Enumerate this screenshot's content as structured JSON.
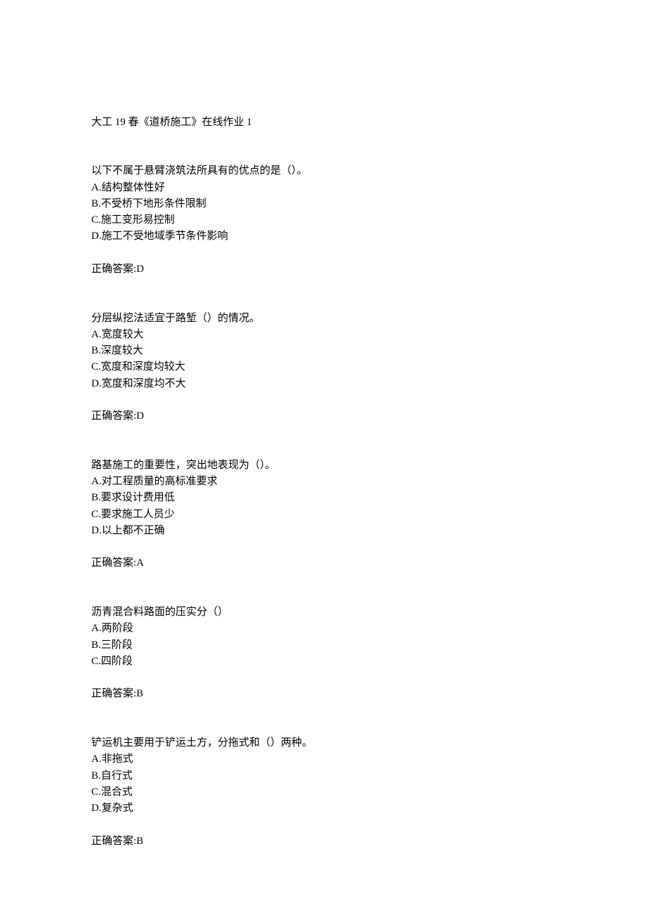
{
  "header": "大工 19 春《道桥施工》在线作业 1",
  "questions": [
    {
      "stem": "以下不属于悬臂浇筑法所具有的优点的是（）。",
      "options": [
        "A.结构整体性好",
        "B.不受桥下地形条件限制",
        "C.施工变形易控制",
        "D.施工不受地域季节条件影响"
      ],
      "answer": "正确答案:D"
    },
    {
      "stem": "分层纵挖法适宜于路堑（）的情况。",
      "options": [
        "A.宽度较大",
        "B.深度较大",
        "C.宽度和深度均较大",
        "D.宽度和深度均不大"
      ],
      "answer": "正确答案:D"
    },
    {
      "stem": "路基施工的重要性，突出地表现为（）。",
      "options": [
        "A.对工程质量的高标准要求",
        "B.要求设计费用低",
        "C.要求施工人员少",
        "D.以上都不正确"
      ],
      "answer": "正确答案:A"
    },
    {
      "stem": "沥青混合料路面的压实分（）",
      "options": [
        "A.两阶段",
        "B.三阶段",
        "C.四阶段"
      ],
      "answer": "正确答案:B"
    },
    {
      "stem": "铲运机主要用于铲运土方，分拖式和（）两种。",
      "options": [
        "A.非拖式",
        "B.自行式",
        "C.混合式",
        "D.复杂式"
      ],
      "answer": "正确答案:B"
    }
  ]
}
